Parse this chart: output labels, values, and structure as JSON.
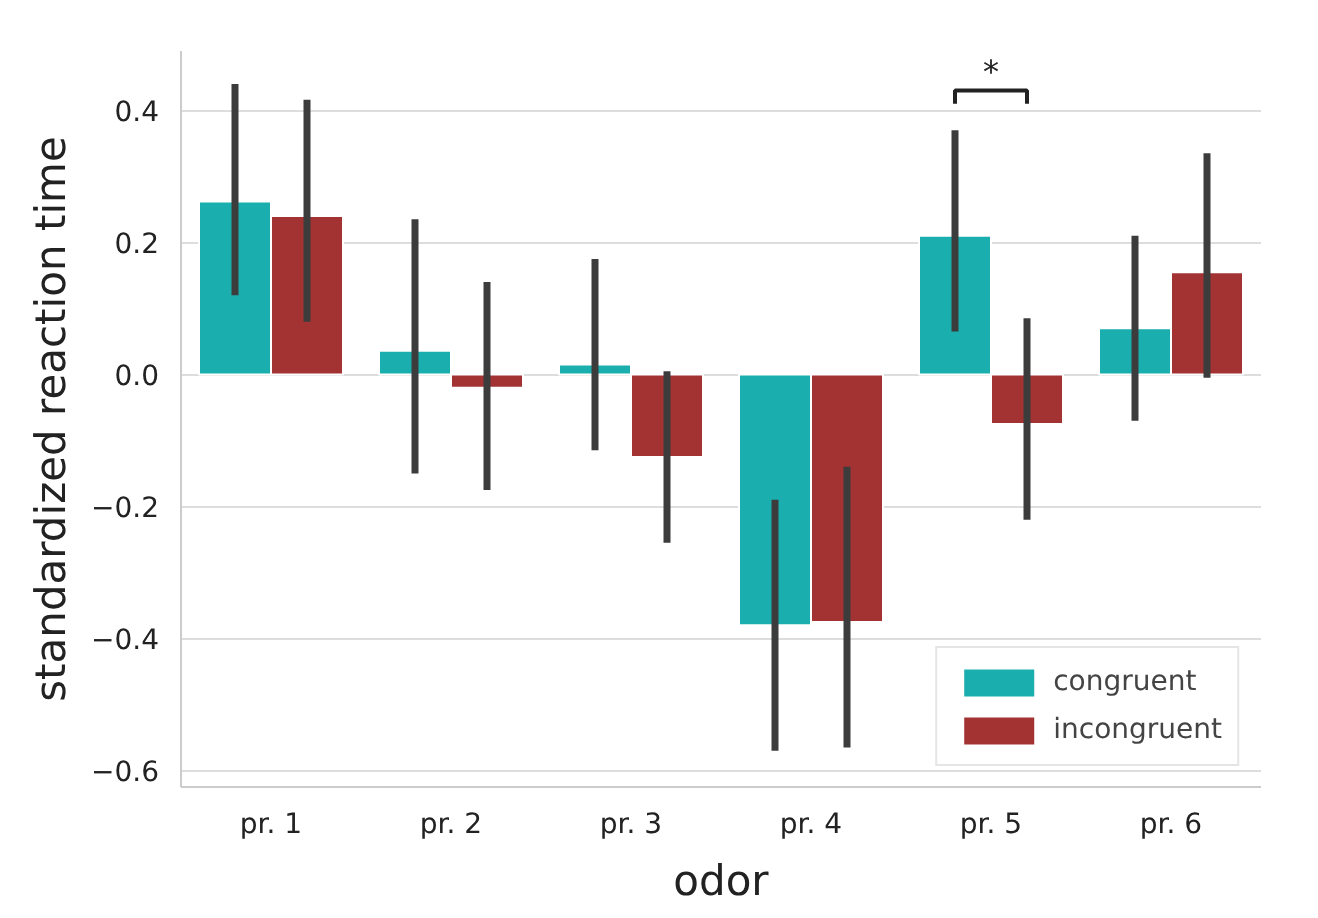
{
  "chart_data": {
    "type": "bar",
    "xlabel": "odor",
    "ylabel": "standardized reaction time",
    "categories": [
      "pr. 1",
      "pr. 2",
      "pr. 3",
      "pr. 4",
      "pr. 5",
      "pr. 6"
    ],
    "series": [
      {
        "name": "congruent",
        "color": "#1aaeae",
        "values": [
          0.262,
          0.036,
          0.015,
          -0.38,
          0.21,
          0.07
        ],
        "errors": [
          [
            0.12,
            0.44
          ],
          [
            -0.15,
            0.235
          ],
          [
            -0.115,
            0.175
          ],
          [
            -0.57,
            -0.19
          ],
          [
            0.065,
            0.37
          ],
          [
            -0.07,
            0.21
          ]
        ]
      },
      {
        "name": "incongruent",
        "color": "#a33333",
        "values": [
          0.24,
          -0.02,
          -0.125,
          -0.375,
          -0.075,
          0.155
        ],
        "errors": [
          [
            0.08,
            0.416
          ],
          [
            -0.175,
            0.14
          ],
          [
            -0.255,
            0.005
          ],
          [
            -0.565,
            -0.14
          ],
          [
            -0.22,
            0.085
          ],
          [
            -0.005,
            0.335
          ]
        ]
      }
    ],
    "ylim": [
      -0.625,
      0.49
    ],
    "yticks": [
      {
        "value": -0.6,
        "label": "−0.6"
      },
      {
        "value": -0.4,
        "label": "−0.4"
      },
      {
        "value": -0.2,
        "label": "−0.2"
      },
      {
        "value": 0,
        "label": "0.0"
      },
      {
        "value": 0.2,
        "label": "0.2"
      },
      {
        "value": 0.4,
        "label": "0.4"
      }
    ],
    "grid": "y",
    "legend": "bottom right",
    "annotations": [
      "*"
    ]
  }
}
